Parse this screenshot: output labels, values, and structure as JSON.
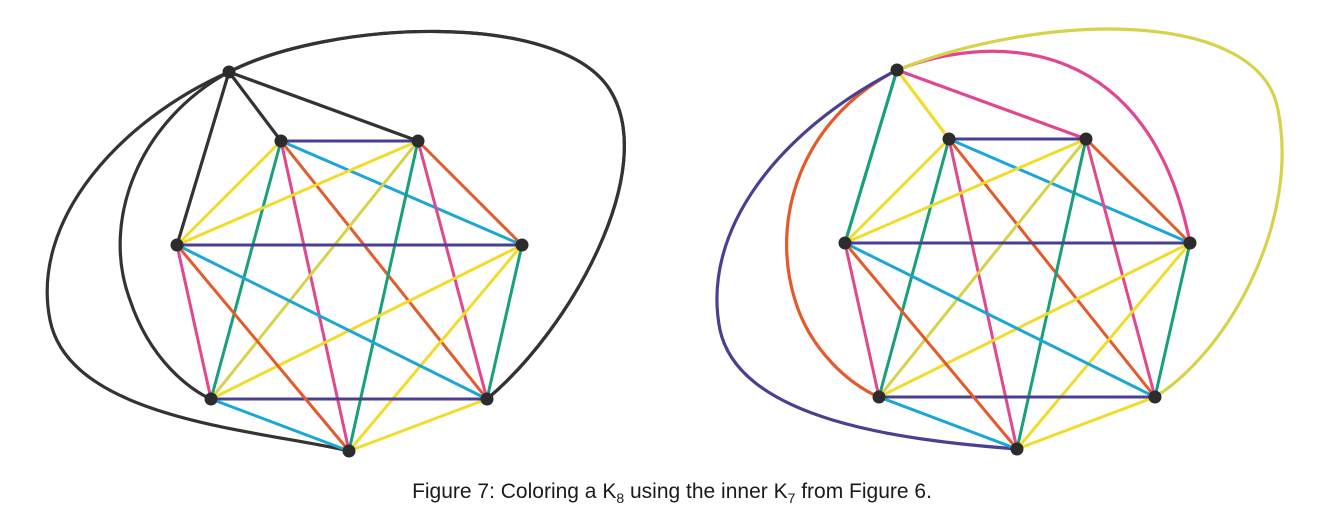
{
  "caption": {
    "prefix": "Figure 7: Coloring a K",
    "sub1": "8",
    "middle": " using the inner K",
    "sub2": "7",
    "suffix": " from Figure 6."
  },
  "colors": {
    "black": "#333333",
    "purple": "#4b3f91",
    "blue": "#1ba6d8",
    "yellow": "#f1dc2c",
    "olive": "#d6d34a",
    "orange": "#e45a2a",
    "pink": "#e2468f",
    "green": "#17a079",
    "node": "#2c2c2c"
  },
  "graph": {
    "vertices": [
      "outer",
      "top-left",
      "top-right",
      "right",
      "bottom-right",
      "bottom",
      "bottom-left",
      "left"
    ],
    "inner_edges": [
      [
        "top-left",
        "top-right",
        "purple"
      ],
      [
        "top-left",
        "right",
        "blue"
      ],
      [
        "top-left",
        "bottom-right",
        "orange"
      ],
      [
        "top-left",
        "bottom",
        "pink"
      ],
      [
        "top-left",
        "bottom-left",
        "green"
      ],
      [
        "top-left",
        "left",
        "yellow"
      ],
      [
        "top-right",
        "right",
        "orange"
      ],
      [
        "top-right",
        "bottom-right",
        "pink"
      ],
      [
        "top-right",
        "bottom",
        "green"
      ],
      [
        "top-right",
        "bottom-left",
        "olive"
      ],
      [
        "top-right",
        "left",
        "yellow"
      ],
      [
        "right",
        "bottom-right",
        "green"
      ],
      [
        "right",
        "bottom",
        "yellow"
      ],
      [
        "right",
        "bottom-left",
        "yellow"
      ],
      [
        "right",
        "left",
        "purple"
      ],
      [
        "bottom-right",
        "bottom",
        "yellow"
      ],
      [
        "bottom-right",
        "bottom-left",
        "purple"
      ],
      [
        "bottom-right",
        "left",
        "blue"
      ],
      [
        "bottom",
        "bottom-left",
        "blue"
      ],
      [
        "bottom",
        "left",
        "orange"
      ],
      [
        "bottom-left",
        "left",
        "pink"
      ]
    ],
    "left_outer_colors": {
      "top-left": "black",
      "top-right": "black",
      "right": "black",
      "bottom-right": "black",
      "bottom": "black",
      "bottom-left": "black",
      "left": "black"
    },
    "right_outer_colors": {
      "top-left": "yellow",
      "top-right": "pink",
      "right": "pink",
      "bottom-right": "olive",
      "bottom": "purple",
      "bottom-left": "orange",
      "left": "green"
    }
  }
}
